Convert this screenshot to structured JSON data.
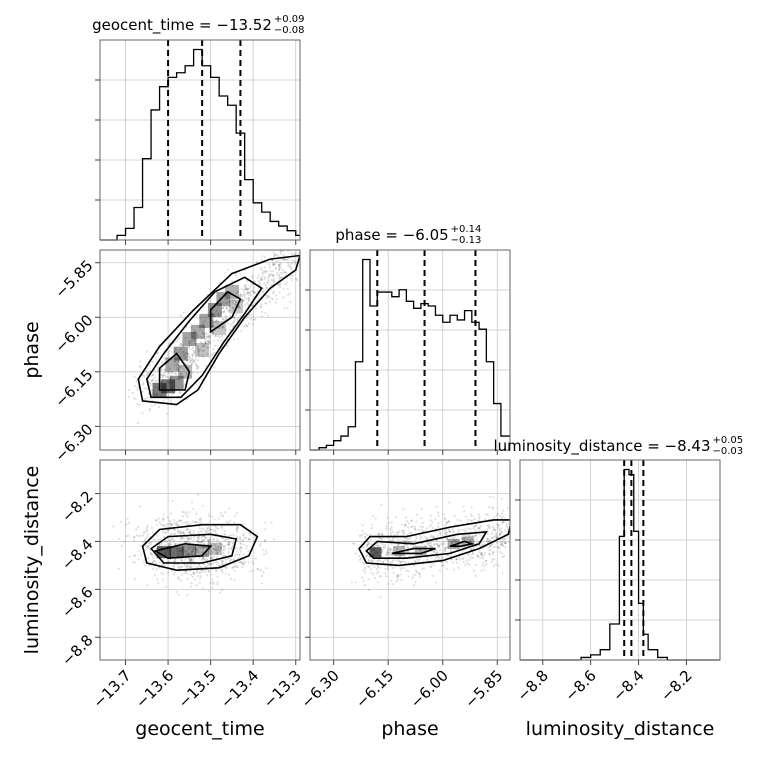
{
  "chart_data": {
    "type": "corner",
    "parameters": [
      "geocent_time",
      "phase",
      "luminosity_distance"
    ],
    "axis_labels": {
      "x": [
        "geocent_time",
        "phase",
        "luminosity_distance"
      ],
      "y": [
        "phase",
        "luminosity_distance"
      ]
    },
    "ranges": {
      "geocent_time": [
        -13.76,
        -13.29
      ],
      "phase": [
        -6.365,
        -5.815
      ],
      "luminosity_distance": [
        -8.895,
        -8.06
      ]
    },
    "ticks": {
      "geocent_time": [
        -13.7,
        -13.6,
        -13.5,
        -13.4,
        -13.3
      ],
      "phase": [
        -6.3,
        -6.15,
        -6.0,
        -5.85
      ],
      "luminosity_distance": [
        -8.8,
        -8.6,
        -8.4,
        -8.2
      ]
    },
    "tick_labels": {
      "geocent_time": [
        "−13.7",
        "−13.6",
        "−13.5",
        "−13.4",
        "−13.3"
      ],
      "phase": [
        "−6.30",
        "−6.15",
        "−6.00",
        "−5.85"
      ],
      "luminosity_distance": [
        "−8.8",
        "−8.6",
        "−8.4",
        "−8.2"
      ]
    },
    "titles": {
      "geocent_time": {
        "text": "geocent_time = −13.52",
        "sup": "+0.09",
        "sub": "−0.08"
      },
      "phase": {
        "text": "phase = −6.05",
        "sup": "+0.14",
        "sub": "−0.13"
      },
      "luminosity_distance": {
        "text": "luminosity_distance = −8.43",
        "sup": "+0.05",
        "sub": "−0.03"
      }
    },
    "quantiles": {
      "geocent_time": [
        -13.6,
        -13.52,
        -13.43
      ],
      "phase": [
        -6.18,
        -6.05,
        -5.91
      ],
      "luminosity_distance": [
        -8.46,
        -8.43,
        -8.38
      ]
    },
    "marginals": {
      "geocent_time": {
        "edges": [
          -13.76,
          -13.74,
          -13.72,
          -13.7,
          -13.68,
          -13.66,
          -13.64,
          -13.62,
          -13.6,
          -13.58,
          -13.56,
          -13.54,
          -13.52,
          -13.5,
          -13.48,
          -13.46,
          -13.44,
          -13.42,
          -13.4,
          -13.38,
          -13.36,
          -13.34,
          -13.32,
          -13.3,
          -13.29
        ],
        "counts": [
          0,
          0,
          2,
          5,
          14,
          35,
          56,
          66,
          70,
          72,
          75,
          82,
          75,
          70,
          62,
          58,
          46,
          26,
          16,
          12,
          8,
          6,
          4,
          2
        ]
      },
      "phase": {
        "edges": [
          -6.365,
          -6.34,
          -6.32,
          -6.3,
          -6.28,
          -6.26,
          -6.24,
          -6.22,
          -6.2,
          -6.18,
          -6.16,
          -6.14,
          -6.12,
          -6.1,
          -6.08,
          -6.06,
          -6.04,
          -6.02,
          -6.0,
          -5.98,
          -5.96,
          -5.94,
          -5.92,
          -5.9,
          -5.88,
          -5.86,
          -5.84,
          -5.815
        ],
        "counts": [
          0,
          1,
          2,
          4,
          6,
          10,
          38,
          82,
          62,
          68,
          68,
          66,
          69,
          64,
          61,
          63,
          62,
          58,
          55,
          58,
          56,
          60,
          55,
          52,
          38,
          20,
          6
        ]
      },
      "luminosity_distance": {
        "edges": [
          -8.895,
          -8.84,
          -8.8,
          -8.76,
          -8.72,
          -8.68,
          -8.64,
          -8.6,
          -8.56,
          -8.52,
          -8.48,
          -8.46,
          -8.44,
          -8.42,
          -8.4,
          -8.38,
          -8.36,
          -8.32,
          -8.28,
          -8.24,
          -8.2,
          -8.06
        ],
        "counts": [
          0,
          0,
          0,
          0,
          0,
          0,
          1,
          2,
          4,
          14,
          48,
          74,
          72,
          50,
          22,
          10,
          4,
          1,
          0,
          0,
          0
        ]
      }
    },
    "grid": true
  }
}
